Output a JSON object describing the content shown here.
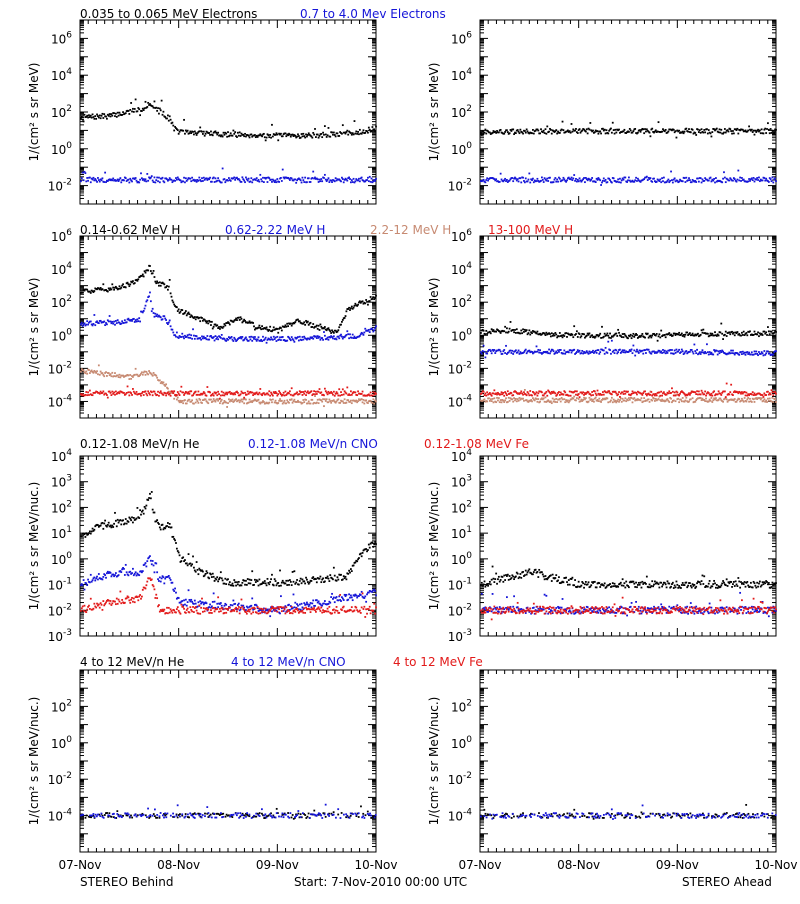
{
  "legends": [
    [
      {
        "text": "0.035 to 0.065 MeV Electrons",
        "color": "#000000"
      },
      {
        "text": "0.7 to 4.0 Mev Electrons",
        "color": "#1515d8"
      }
    ],
    [
      {
        "text": "0.14-0.62 MeV H",
        "color": "#000000"
      },
      {
        "text": "0.62-2.22 MeV H",
        "color": "#1515d8"
      },
      {
        "text": "2.2-12 MeV H",
        "color": "#c78a72"
      },
      {
        "text": "13-100 MeV H",
        "color": "#e21a1a"
      }
    ],
    [
      {
        "text": "0.12-1.08 MeV/n He",
        "color": "#000000"
      },
      {
        "text": "0.12-1.08 MeV/n CNO",
        "color": "#1515d8"
      },
      {
        "text": "0.12-1.08 MeV Fe",
        "color": "#e21a1a"
      }
    ],
    [
      {
        "text": "4 to 12 MeV/n He",
        "color": "#000000"
      },
      {
        "text": "4 to 12 MeV/n CNO",
        "color": "#1515d8"
      },
      {
        "text": "4 to 12 MeV Fe",
        "color": "#e21a1a"
      }
    ]
  ],
  "ylabels": [
    "1/(cm² s sr MeV)",
    "1/(cm² s sr MeV)",
    "1/(cm² s sr MeV/nuc.)",
    "1/(cm² s sr MeV/nuc.)"
  ],
  "xticks": [
    "07-Nov",
    "08-Nov",
    "09-Nov",
    "10-Nov"
  ],
  "footer": {
    "left": "STEREO Behind",
    "center": "Start:  7-Nov-2010 00:00 UTC",
    "right": "STEREO Ahead"
  },
  "colors": {
    "black": "#000000",
    "blue": "#1515d8",
    "tan": "#c78a72",
    "red": "#e21a1a"
  },
  "chart_data": [
    {
      "type": "scatter",
      "row": 0,
      "side": "Behind",
      "y_scale": "log",
      "ylim_exp": [
        -3,
        7
      ],
      "yticks_exp": [
        -2,
        0,
        2,
        4,
        6
      ],
      "x_unit": "days since 07-Nov-2010",
      "xlim": [
        0,
        3
      ],
      "series": [
        {
          "name": "0.035 to 0.065 MeV Electrons",
          "color": "black",
          "points": [
            [
              0,
              50
            ],
            [
              0.3,
              60
            ],
            [
              0.55,
              120
            ],
            [
              0.65,
              160
            ],
            [
              0.7,
              350
            ],
            [
              0.72,
              220
            ],
            [
              0.8,
              100
            ],
            [
              0.85,
              70
            ],
            [
              0.9,
              40
            ],
            [
              0.95,
              12
            ],
            [
              1,
              8
            ],
            [
              1.5,
              6
            ],
            [
              2,
              5
            ],
            [
              2.5,
              5.5
            ],
            [
              2.8,
              8
            ],
            [
              3,
              12
            ]
          ]
        },
        {
          "name": "0.7 to 4.0 Mev Electrons",
          "color": "blue",
          "points": [
            [
              0,
              0.02
            ],
            [
              1,
              0.02
            ],
            [
              2,
              0.02
            ],
            [
              3,
              0.02
            ]
          ]
        }
      ]
    },
    {
      "type": "scatter",
      "row": 0,
      "side": "Ahead",
      "y_scale": "log",
      "ylim_exp": [
        -3,
        7
      ],
      "yticks_exp": [
        -2,
        0,
        2,
        4,
        6
      ],
      "x_unit": "days since 07-Nov-2010",
      "xlim": [
        0,
        3
      ],
      "series": [
        {
          "name": "0.035 to 0.065 MeV Electrons",
          "color": "black",
          "points": [
            [
              0,
              8
            ],
            [
              1,
              9
            ],
            [
              2,
              9
            ],
            [
              3,
              9
            ]
          ]
        },
        {
          "name": "0.7 to 4.0 Mev Electrons",
          "color": "blue",
          "points": [
            [
              0,
              0.02
            ],
            [
              1,
              0.02
            ],
            [
              2,
              0.02
            ],
            [
              3,
              0.02
            ]
          ]
        }
      ]
    },
    {
      "type": "scatter",
      "row": 1,
      "side": "Behind",
      "y_scale": "log",
      "ylim_exp": [
        -5,
        6
      ],
      "yticks_exp": [
        -4,
        -2,
        0,
        2,
        4,
        6
      ],
      "x_unit": "days since 07-Nov-2010",
      "xlim": [
        0,
        3
      ],
      "series": [
        {
          "name": "0.14-0.62 MeV H",
          "color": "black",
          "points": [
            [
              0,
              400
            ],
            [
              0.3,
              600
            ],
            [
              0.55,
              1500
            ],
            [
              0.65,
              5000
            ],
            [
              0.7,
              15000
            ],
            [
              0.75,
              2000
            ],
            [
              0.85,
              1000
            ],
            [
              0.9,
              600
            ],
            [
              0.95,
              60
            ],
            [
              1,
              30
            ],
            [
              1.2,
              10
            ],
            [
              1.4,
              3
            ],
            [
              1.6,
              10
            ],
            [
              1.8,
              3
            ],
            [
              2,
              2
            ],
            [
              2.2,
              8
            ],
            [
              2.4,
              3
            ],
            [
              2.6,
              1.5
            ],
            [
              2.7,
              30
            ],
            [
              2.85,
              100
            ],
            [
              3,
              200
            ]
          ]
        },
        {
          "name": "0.62-2.22 MeV H",
          "color": "blue",
          "points": [
            [
              0,
              5
            ],
            [
              0.4,
              6
            ],
            [
              0.6,
              10
            ],
            [
              0.7,
              400
            ],
            [
              0.72,
              20
            ],
            [
              0.85,
              10
            ],
            [
              0.9,
              5
            ],
            [
              0.95,
              1.2
            ],
            [
              1,
              0.8
            ],
            [
              1.5,
              0.6
            ],
            [
              2,
              0.6
            ],
            [
              2.5,
              0.7
            ],
            [
              2.8,
              0.9
            ],
            [
              3,
              3
            ]
          ]
        },
        {
          "name": "2.2-12 MeV H",
          "color": "tan",
          "points": [
            [
              0,
              0.007
            ],
            [
              0.3,
              0.004
            ],
            [
              0.5,
              0.003
            ],
            [
              0.7,
              0.006
            ],
            [
              0.85,
              0.001
            ],
            [
              0.95,
              0.0002
            ],
            [
              1,
              0.0001
            ],
            [
              2,
              0.0001
            ],
            [
              3,
              0.0001
            ]
          ]
        },
        {
          "name": "13-100 MeV H",
          "color": "red",
          "points": [
            [
              0,
              0.0003
            ],
            [
              1,
              0.0003
            ],
            [
              2,
              0.0003
            ],
            [
              3,
              0.0003
            ]
          ]
        }
      ]
    },
    {
      "type": "scatter",
      "row": 1,
      "side": "Ahead",
      "y_scale": "log",
      "ylim_exp": [
        -5,
        6
      ],
      "yticks_exp": [
        -4,
        -2,
        0,
        2,
        4,
        6
      ],
      "x_unit": "days since 07-Nov-2010",
      "xlim": [
        0,
        3
      ],
      "series": [
        {
          "name": "0.14-0.62 MeV H",
          "color": "black",
          "points": [
            [
              0,
              1.5
            ],
            [
              0.3,
              2
            ],
            [
              0.5,
              1.5
            ],
            [
              0.7,
              1.0
            ],
            [
              1.5,
              0.9
            ],
            [
              2.5,
              1.2
            ],
            [
              3,
              1.3
            ]
          ]
        },
        {
          "name": "0.62-2.22 MeV H",
          "color": "blue",
          "points": [
            [
              0,
              0.1
            ],
            [
              1,
              0.1
            ],
            [
              2,
              0.1
            ],
            [
              3,
              0.08
            ]
          ]
        },
        {
          "name": "2.2-12 MeV H",
          "color": "tan",
          "points": [
            [
              0,
              0.00012
            ],
            [
              3,
              0.00012
            ]
          ]
        },
        {
          "name": "13-100 MeV H",
          "color": "red",
          "points": [
            [
              0,
              0.0003
            ],
            [
              1,
              0.0003
            ],
            [
              2,
              0.0003
            ],
            [
              3,
              0.0003
            ]
          ]
        }
      ]
    },
    {
      "type": "scatter",
      "row": 2,
      "side": "Behind",
      "y_scale": "log",
      "ylim_exp": [
        -3,
        4
      ],
      "yticks_exp": [
        -3,
        -2,
        -1,
        0,
        1,
        2,
        3,
        4
      ],
      "x_unit": "days since 07-Nov-2010",
      "xlim": [
        0,
        3
      ],
      "series": [
        {
          "name": "0.12-1.08 MeV/n He",
          "color": "black",
          "points": [
            [
              0,
              8
            ],
            [
              0.2,
              18
            ],
            [
              0.4,
              25
            ],
            [
              0.6,
              40
            ],
            [
              0.7,
              250
            ],
            [
              0.75,
              40
            ],
            [
              0.8,
              15
            ],
            [
              0.9,
              20
            ],
            [
              0.95,
              5
            ],
            [
              1,
              1
            ],
            [
              1.2,
              0.3
            ],
            [
              1.5,
              0.12
            ],
            [
              2,
              0.12
            ],
            [
              2.4,
              0.15
            ],
            [
              2.7,
              0.2
            ],
            [
              2.85,
              1.5
            ],
            [
              3,
              5
            ]
          ]
        },
        {
          "name": "0.12-1.08 MeV/n CNO",
          "color": "blue",
          "points": [
            [
              0,
              0.1
            ],
            [
              0.2,
              0.2
            ],
            [
              0.4,
              0.3
            ],
            [
              0.6,
              0.3
            ],
            [
              0.7,
              1.0
            ],
            [
              0.8,
              0.15
            ],
            [
              0.9,
              0.2
            ],
            [
              1,
              0.02
            ],
            [
              2,
              0.01
            ],
            [
              3,
              0.05
            ]
          ]
        },
        {
          "name": "0.12-1.08 MeV Fe",
          "color": "red",
          "points": [
            [
              0,
              0.01
            ],
            [
              0.3,
              0.02
            ],
            [
              0.6,
              0.03
            ],
            [
              0.7,
              0.2
            ],
            [
              0.8,
              0.01
            ],
            [
              1,
              0.01
            ],
            [
              2,
              0.01
            ],
            [
              3,
              0.01
            ]
          ]
        }
      ]
    },
    {
      "type": "scatter",
      "row": 2,
      "side": "Ahead",
      "y_scale": "log",
      "ylim_exp": [
        -3,
        4
      ],
      "yticks_exp": [
        -3,
        -2,
        -1,
        0,
        1,
        2,
        3,
        4
      ],
      "x_unit": "days since 07-Nov-2010",
      "xlim": [
        0,
        3
      ],
      "series": [
        {
          "name": "0.12-1.08 MeV/n He",
          "color": "black",
          "points": [
            [
              0,
              0.1
            ],
            [
              0.3,
              0.2
            ],
            [
              0.5,
              0.3
            ],
            [
              1,
              0.1
            ],
            [
              2,
              0.1
            ],
            [
              3,
              0.1
            ]
          ]
        },
        {
          "name": "0.12-1.08 MeV/n CNO",
          "color": "blue",
          "points": [
            [
              0,
              0.01
            ],
            [
              1,
              0.01
            ],
            [
              2,
              0.01
            ],
            [
              3,
              0.01
            ]
          ]
        },
        {
          "name": "0.12-1.08 MeV Fe",
          "color": "red",
          "points": [
            [
              0,
              0.01
            ],
            [
              3,
              0.01
            ]
          ]
        }
      ]
    },
    {
      "type": "scatter",
      "row": 3,
      "side": "Behind",
      "y_scale": "log",
      "ylim_exp": [
        -6,
        4
      ],
      "yticks_exp": [
        -4,
        -2,
        0,
        2
      ],
      "x_unit": "days since 07-Nov-2010",
      "xlim": [
        0,
        3
      ],
      "series": [
        {
          "name": "4 to 12 MeV/n He",
          "color": "black",
          "points": [
            [
              0,
              0.0001
            ],
            [
              1,
              0.0001
            ],
            [
              2,
              0.0001
            ],
            [
              3,
              0.0001
            ]
          ]
        },
        {
          "name": "4 to 12 MeV/n CNO",
          "color": "blue",
          "points": [
            [
              0.7,
              0.0001
            ]
          ]
        },
        {
          "name": "4 to 12 MeV Fe",
          "color": "red",
          "points": []
        }
      ]
    },
    {
      "type": "scatter",
      "row": 3,
      "side": "Ahead",
      "y_scale": "log",
      "ylim_exp": [
        -6,
        4
      ],
      "yticks_exp": [
        -4,
        -2,
        0,
        2
      ],
      "x_unit": "days since 07-Nov-2010",
      "xlim": [
        0,
        3
      ],
      "series": [
        {
          "name": "4 to 12 MeV/n He",
          "color": "black",
          "points": [
            [
              0,
              0.0001
            ],
            [
              1,
              0.0001
            ],
            [
              2,
              0.0001
            ],
            [
              3,
              0.0001
            ]
          ]
        },
        {
          "name": "4 to 12 MeV/n CNO",
          "color": "blue",
          "points": [
            [
              0.5,
              0.0001
            ]
          ]
        },
        {
          "name": "4 to 12 MeV Fe",
          "color": "red",
          "points": []
        }
      ]
    }
  ]
}
